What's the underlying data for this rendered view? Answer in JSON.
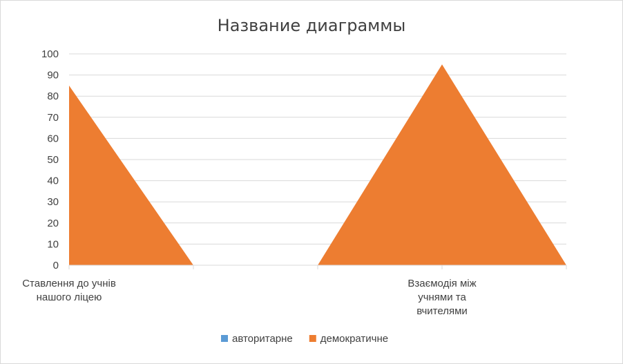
{
  "chart_data": {
    "type": "area",
    "title": "Название диаграммы",
    "categories": [
      [
        "Ставлення до учнів",
        "нашого ліцею"
      ],
      [],
      [],
      [
        "Взаємодія між",
        "учнями та",
        "вчителями"
      ],
      []
    ],
    "ylim": [
      0,
      100
    ],
    "yticks": [
      0,
      10,
      20,
      30,
      40,
      50,
      60,
      70,
      80,
      90,
      100
    ],
    "grid": true,
    "legend_position": "bottom",
    "series": [
      {
        "name": "авторитарне",
        "color": "#5b9bd5",
        "values": [
          0,
          0,
          0,
          0,
          0
        ]
      },
      {
        "name": "демократичне",
        "color": "#ed7d31",
        "values": [
          85,
          0,
          0,
          95,
          0
        ]
      }
    ]
  }
}
